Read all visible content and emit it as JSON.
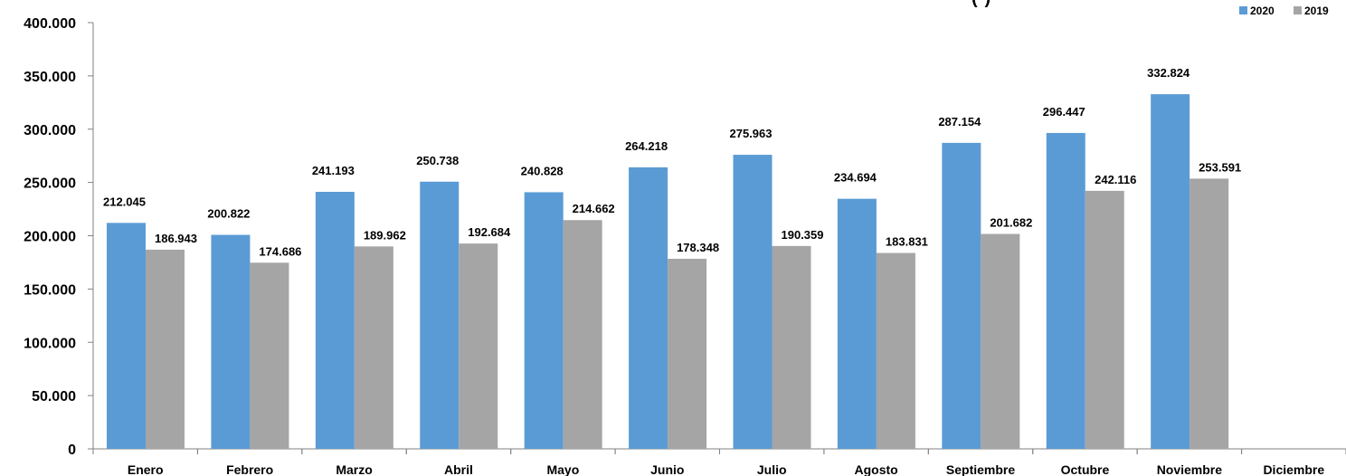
{
  "chart_data": {
    "type": "bar",
    "title_fragment": "(*)",
    "categories": [
      "Enero",
      "Febrero",
      "Marzo",
      "Abril",
      "Mayo",
      "Junio",
      "Julio",
      "Agosto",
      "Septiembre",
      "Octubre",
      "Noviembre",
      "Diciembre"
    ],
    "series": [
      {
        "name": "2020",
        "color": "#5B9BD5",
        "values": [
          212045,
          200822,
          241193,
          250738,
          240828,
          264218,
          275963,
          234694,
          287154,
          296447,
          332824,
          null
        ],
        "labels": [
          "212.045",
          "200.822",
          "241.193",
          "250.738",
          "240.828",
          "264.218",
          "275.963",
          "234.694",
          "287.154",
          "296.447",
          "332.824",
          ""
        ]
      },
      {
        "name": "2019",
        "color": "#A5A5A5",
        "values": [
          186943,
          174686,
          189962,
          192684,
          214662,
          178348,
          190359,
          183831,
          201682,
          242116,
          253591,
          null
        ],
        "labels": [
          "186.943",
          "174.686",
          "189.962",
          "192.684",
          "214.662",
          "178.348",
          "190.359",
          "183.831",
          "201.682",
          "242.116",
          "253.591",
          ""
        ]
      }
    ],
    "ylim": [
      0,
      400000
    ],
    "yticks": [
      0,
      50000,
      100000,
      150000,
      200000,
      250000,
      300000,
      350000,
      400000
    ],
    "ytick_labels": [
      "0",
      "50.000",
      "100.000",
      "150.000",
      "200.000",
      "250.000",
      "300.000",
      "350.000",
      "400.000"
    ],
    "legend_position": "top-right",
    "grid": false
  }
}
